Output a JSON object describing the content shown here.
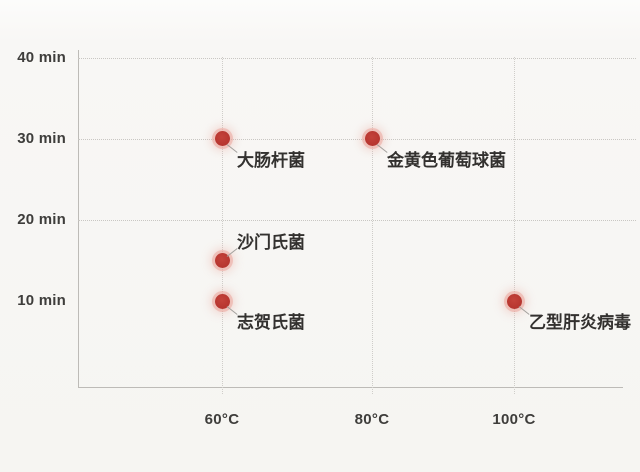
{
  "chart_data": {
    "type": "scatter",
    "title": "",
    "xlabel": "",
    "ylabel": "",
    "x_unit": "°C",
    "y_unit": "min",
    "xlim": [
      40,
      117
    ],
    "ylim": [
      0,
      41
    ],
    "grid": "dotted, horizontal lines at 20/30/40 min, vertical lines at each temperature",
    "legend_position": "none",
    "x_ticks": [
      {
        "value": 60,
        "label": "60°C"
      },
      {
        "value": 80,
        "label": "80°C"
      },
      {
        "value": 100,
        "label": "100°C"
      }
    ],
    "y_ticks": [
      {
        "value": 40,
        "label": "40 min",
        "has_gridline": true
      },
      {
        "value": 30,
        "label": "30 min",
        "has_gridline": true
      },
      {
        "value": 20,
        "label": "20 min",
        "has_gridline": true
      },
      {
        "value": 10,
        "label": "10 min",
        "has_gridline": false
      }
    ],
    "points": [
      {
        "name": "大肠杆菌",
        "x": 60,
        "y": 30,
        "label_pos": "below-right"
      },
      {
        "name": "金黄色葡萄球菌",
        "x": 80,
        "y": 30,
        "label_pos": "below-right"
      },
      {
        "name": "沙门氏菌",
        "x": 60,
        "y": 15,
        "label_pos": "above-right"
      },
      {
        "name": "志贺氏菌",
        "x": 60,
        "y": 10,
        "label_pos": "below-right"
      },
      {
        "name": "乙型肝炎病毒",
        "x": 100,
        "y": 10,
        "label_pos": "below-right"
      }
    ],
    "colors": {
      "point": "#b5342e",
      "point_halo": "#eba69c",
      "grid": "#c9c7c3",
      "axis": "#bdbbb7",
      "text": "#3e3d3b",
      "background": "#f7f6f3"
    }
  }
}
